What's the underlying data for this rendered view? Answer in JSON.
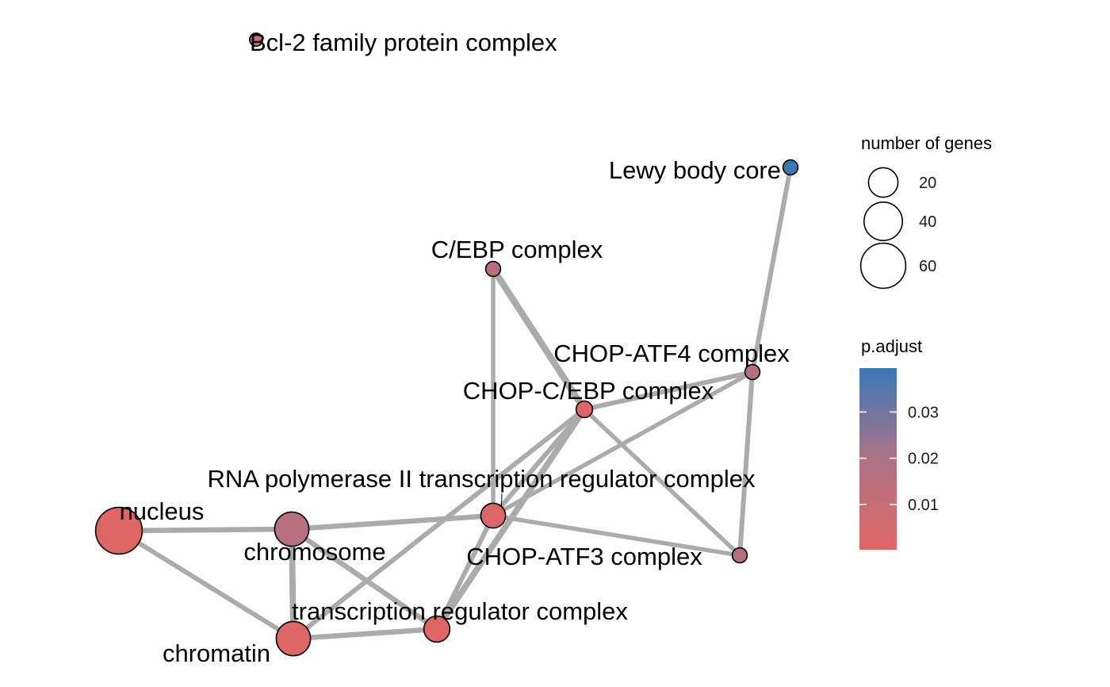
{
  "nodes": [
    {
      "id": "bcl2",
      "label": "Bcl-2 family protein complex",
      "genes": 1,
      "p_adjust": 0.015,
      "color": "#c26b7a"
    },
    {
      "id": "lewy",
      "label": "Lewy body core",
      "genes": 2,
      "p_adjust": 0.039,
      "color": "#3a78b8"
    },
    {
      "id": "cebp",
      "label": "C/EBP complex",
      "genes": 2,
      "p_adjust": 0.024,
      "color": "#b4707f"
    },
    {
      "id": "chop_atf4",
      "label": "CHOP-ATF4 complex",
      "genes": 2,
      "p_adjust": 0.024,
      "color": "#b4707f"
    },
    {
      "id": "chop_cebp",
      "label": "CHOP-C/EBP complex",
      "genes": 3,
      "p_adjust": 0.004,
      "color": "#df6667"
    },
    {
      "id": "rnapol",
      "label": "RNA polymerase II transcription regulator complex",
      "genes": 12,
      "p_adjust": 0.006,
      "color": "#db6668"
    },
    {
      "id": "nucleus",
      "label": "nucleus",
      "genes": 65,
      "p_adjust": 0.002,
      "color": "#e06666"
    },
    {
      "id": "chromosome",
      "label": "chromosome",
      "genes": 30,
      "p_adjust": 0.022,
      "color": "#b87080"
    },
    {
      "id": "chop_atf3",
      "label": "CHOP-ATF3 complex",
      "genes": 2,
      "p_adjust": 0.024,
      "color": "#b4707f"
    },
    {
      "id": "transcription",
      "label": "transcription regulator complex",
      "genes": 14,
      "p_adjust": 0.004,
      "color": "#df6667"
    },
    {
      "id": "chromatin",
      "label": "chromatin",
      "genes": 30,
      "p_adjust": 0.004,
      "color": "#df6667"
    }
  ],
  "edges": [
    {
      "source": "lewy",
      "target": "chop_atf4",
      "weight": 0.5
    },
    {
      "source": "chop_atf4",
      "target": "chop_atf3",
      "weight": 0.5
    },
    {
      "source": "chop_atf4",
      "target": "chop_cebp",
      "weight": 0.5
    },
    {
      "source": "chop_atf4",
      "target": "rnapol",
      "weight": 0.4
    },
    {
      "source": "cebp",
      "target": "chop_cebp",
      "weight": 0.9
    },
    {
      "source": "cebp",
      "target": "rnapol",
      "weight": 0.4
    },
    {
      "source": "chop_cebp",
      "target": "chop_atf3",
      "weight": 0.4
    },
    {
      "source": "chop_cebp",
      "target": "rnapol",
      "weight": 0.5
    },
    {
      "source": "chop_cebp",
      "target": "transcription",
      "weight": 0.8
    },
    {
      "source": "chop_cebp",
      "target": "chromatin",
      "weight": 0.5
    },
    {
      "source": "rnapol",
      "target": "chop_atf3",
      "weight": 0.4
    },
    {
      "source": "rnapol",
      "target": "chromosome",
      "weight": 0.6
    },
    {
      "source": "rnapol",
      "target": "transcription",
      "weight": 0.5
    },
    {
      "source": "nucleus",
      "target": "chromosome",
      "weight": 0.6
    },
    {
      "source": "nucleus",
      "target": "chromatin",
      "weight": 0.5
    },
    {
      "source": "chromosome",
      "target": "chromatin",
      "weight": 0.8
    },
    {
      "source": "chromosome",
      "target": "transcription",
      "weight": 0.6
    },
    {
      "source": "chromatin",
      "target": "transcription",
      "weight": 0.6
    }
  ],
  "legend": {
    "size_title": "number of genes",
    "size_entries": [
      {
        "label": "20",
        "genes": 20
      },
      {
        "label": "40",
        "genes": 40
      },
      {
        "label": "60",
        "genes": 60
      }
    ],
    "color_title": "p.adjust",
    "color_ticks": [
      {
        "label": "0.03",
        "value": 0.03
      },
      {
        "label": "0.02",
        "value": 0.02
      },
      {
        "label": "0.01",
        "value": 0.01
      }
    ],
    "color_range": [
      0.0002,
      0.0395
    ],
    "color_low": "#e06666",
    "color_high": "#3a78b8"
  }
}
